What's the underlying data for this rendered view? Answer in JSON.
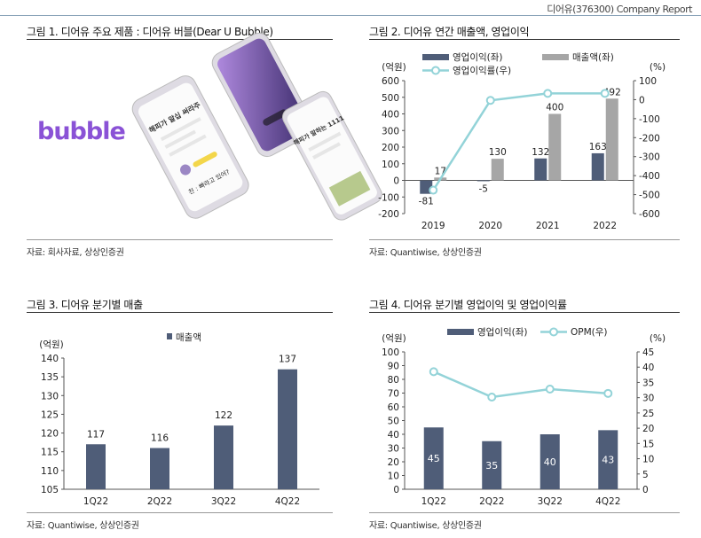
{
  "header": {
    "text": "디어유(376300) Company Report"
  },
  "figures": [
    {
      "title": "그림 1. 디어유 주요 제품 : 디어유 버블(Dear U Bubble)",
      "source": "자료: 회사자료, 상상인증권",
      "image": {
        "logo_text": "bubble",
        "phone_text_1": "해피가 알십 써라주",
        "phone_text_2": "친 : 빠라고 있어?",
        "phone_text_3": "해피가 말하는 1111"
      }
    },
    {
      "title": "그림 2. 디어유 연간 매출액, 영업이익",
      "source": "자료: Quantiwise, 상상인증권"
    },
    {
      "title": "그림 3. 디어유 분기별 매출",
      "source": "자료: Quantiwise, 상상인증권"
    },
    {
      "title": "그림 4. 디어유 분기별 영업이익 및 영업이익률",
      "source": "자료: Quantiwise, 상상인증권"
    }
  ],
  "chart_data": [
    {
      "id": "annual",
      "type": "bar+line",
      "categories": [
        "2019",
        "2020",
        "2021",
        "2022"
      ],
      "series": [
        {
          "name": "영업이익(좌)",
          "type": "bar",
          "axis": "left",
          "values": [
            -81,
            -5,
            132,
            163
          ],
          "color": "#4f5d78"
        },
        {
          "name": "매출액(좌)",
          "type": "bar",
          "axis": "left",
          "values": [
            17,
            130,
            400,
            492
          ],
          "color": "#a6a6a6"
        },
        {
          "name": "영업이익률(우)",
          "type": "line",
          "axis": "right",
          "values": [
            -476.5,
            -3.8,
            33.0,
            33.1
          ],
          "color": "#93d3d8"
        }
      ],
      "ylabel_left": "(억원)",
      "ylabel_right": "(%)",
      "ylim_left": [
        -200,
        600
      ],
      "yticks_left": [
        -200,
        -100,
        0,
        100,
        200,
        300,
        400,
        500,
        600
      ],
      "ylim_right": [
        -600,
        100
      ],
      "yticks_right": [
        -600,
        -500,
        -400,
        -300,
        -200,
        -100,
        0,
        100
      ],
      "legend_placement": "top"
    },
    {
      "id": "quarterly_sales",
      "type": "bar",
      "categories": [
        "1Q22",
        "2Q22",
        "3Q22",
        "4Q22"
      ],
      "series": [
        {
          "name": "매출액",
          "values": [
            117,
            116,
            122,
            137
          ],
          "color": "#4f5d78"
        }
      ],
      "ylabel": "(억원)",
      "ylim": [
        105,
        140
      ],
      "yticks": [
        105,
        110,
        115,
        120,
        125,
        130,
        135,
        140
      ],
      "legend_placement": "top"
    },
    {
      "id": "quarterly_op",
      "type": "bar+line",
      "categories": [
        "1Q22",
        "2Q22",
        "3Q22",
        "4Q22"
      ],
      "series": [
        {
          "name": "영업이익(좌)",
          "type": "bar",
          "axis": "left",
          "values": [
            45,
            35,
            40,
            43
          ],
          "color": "#4f5d78"
        },
        {
          "name": "OPM(우)",
          "type": "line",
          "axis": "right",
          "values": [
            38.5,
            30.2,
            32.8,
            31.4
          ],
          "color": "#93d3d8"
        }
      ],
      "ylabel_left": "(억원)",
      "ylabel_right": "(%)",
      "ylim_left": [
        0,
        100
      ],
      "yticks_left": [
        0,
        10,
        20,
        30,
        40,
        50,
        60,
        70,
        80,
        90,
        100
      ],
      "ylim_right": [
        0,
        45
      ],
      "yticks_right": [
        0,
        5,
        10,
        15,
        20,
        25,
        30,
        35,
        40,
        45
      ],
      "legend_placement": "top"
    }
  ]
}
